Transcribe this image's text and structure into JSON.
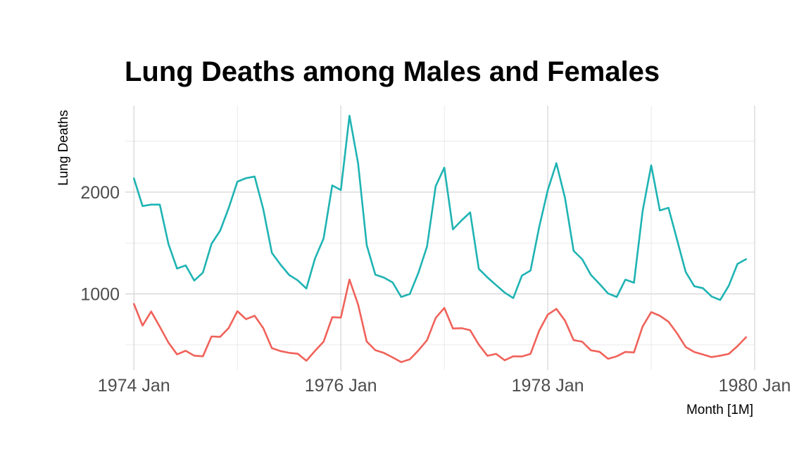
{
  "chart_data": {
    "type": "line",
    "title": "Lung Deaths among Males and Females",
    "xlabel": "Month [1M]",
    "ylabel": "Lung Deaths",
    "x_start": "1974 Jan",
    "x_ticks": [
      "1974 Jan",
      "1976 Jan",
      "1978 Jan",
      "1980 Jan"
    ],
    "y_ticks": [
      1000,
      2000
    ],
    "xlim": [
      "1973 Dec",
      "1980 Jan"
    ],
    "ylim": [
      250,
      2850
    ],
    "grid": true,
    "legend": "none",
    "series": [
      {
        "color": "#1fb3b3",
        "values": [
          2134,
          1863,
          1877,
          1877,
          1492,
          1249,
          1280,
          1131,
          1209,
          1492,
          1621,
          1846,
          2103,
          2137,
          2153,
          1833,
          1403,
          1288,
          1186,
          1133,
          1053,
          1347,
          1545,
          2066,
          2020,
          2750,
          2283,
          1479,
          1189,
          1160,
          1113,
          970,
          999,
          1208,
          1467,
          2059,
          2240,
          1634,
          1722,
          1801,
          1246,
          1162,
          1087,
          1013,
          959,
          1179,
          1229,
          1655,
          2019,
          2284,
          1942,
          1423,
          1340,
          1187,
          1098,
          1004,
          970,
          1140,
          1110,
          1812,
          2263,
          1820,
          1846,
          1531,
          1215,
          1075,
          1056,
          975,
          940,
          1081,
          1294,
          1341
        ]
      },
      {
        "color": "#f0625a",
        "values": [
          901,
          689,
          827,
          677,
          522,
          406,
          441,
          393,
          387,
          582,
          578,
          666,
          830,
          752,
          785,
          664,
          467,
          438,
          421,
          412,
          343,
          440,
          531,
          771,
          767,
          1141,
          896,
          532,
          447,
          420,
          376,
          330,
          357,
          445,
          546,
          764,
          862,
          660,
          663,
          643,
          502,
          392,
          411,
          348,
          387,
          385,
          411,
          638,
          796,
          853,
          737,
          546,
          530,
          446,
          431,
          362,
          387,
          430,
          425,
          679,
          821,
          785,
          727,
          612,
          478,
          429,
          405,
          379,
          393,
          411,
          487,
          574
        ]
      }
    ]
  }
}
